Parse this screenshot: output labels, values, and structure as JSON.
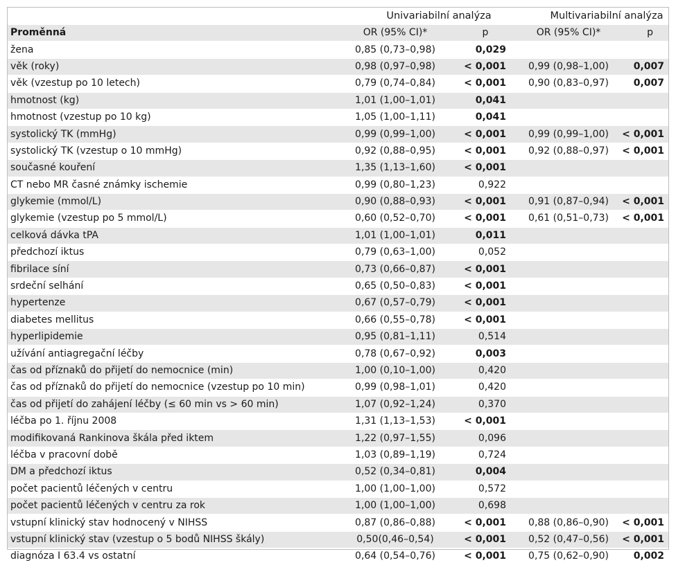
{
  "headers": {
    "group_uni": "Univariabilní analýza",
    "group_multi": "Multivariabilní analýza",
    "col_var": "Proměnná",
    "col_or1": "OR (95% CI)*",
    "col_p1": "p",
    "col_or2": "OR (95% CI)*",
    "col_p2": "p"
  },
  "rows": [
    {
      "var": "žena",
      "or1": "0,85 (0,73–0,98)",
      "p1": "0,029",
      "p1_bold": true,
      "or2": "",
      "p2": ""
    },
    {
      "var": "věk (roky)",
      "or1": "0,98 (0,97–0,98)",
      "p1": "< 0,001",
      "p1_bold": true,
      "or2": "0,99 (0,98–1,00)",
      "p2": "0,007"
    },
    {
      "var": "věk (vzestup po 10 letech)",
      "or1": "0,79 (0,74–0,84)",
      "p1": "< 0,001",
      "p1_bold": true,
      "or2": "0,90 (0,83–0,97)",
      "p2": "0,007"
    },
    {
      "var": "hmotnost (kg)",
      "or1": "1,01 (1,00–1,01)",
      "p1": "0,041",
      "p1_bold": true,
      "or2": "",
      "p2": ""
    },
    {
      "var": "hmotnost (vzestup po 10 kg)",
      "or1": "1,05 (1,00–1,11)",
      "p1": "0,041",
      "p1_bold": true,
      "or2": "",
      "p2": ""
    },
    {
      "var": "systolický TK (mmHg)",
      "or1": "0,99 (0,99–1,00)",
      "p1": "< 0,001",
      "p1_bold": true,
      "or2": "0,99 (0,99–1,00)",
      "p2": "< 0,001"
    },
    {
      "var": "systolický TK (vzestup o 10 mmHg)",
      "or1": "0,92 (0,88–0,95)",
      "p1": "< 0,001",
      "p1_bold": true,
      "or2": "0,92 (0,88–0,97)",
      "p2": "< 0,001"
    },
    {
      "var": "současné kouření",
      "or1": "1,35 (1,13–1,60)",
      "p1": "< 0,001",
      "p1_bold": true,
      "or2": "",
      "p2": ""
    },
    {
      "var": "CT nebo MR časné známky ischemie",
      "or1": "0,99 (0,80–1,23)",
      "p1": "0,922",
      "p1_bold": false,
      "or2": "",
      "p2": ""
    },
    {
      "var": "glykemie (mmol/L)",
      "or1": "0,90 (0,88–0,93)",
      "p1": "< 0,001",
      "p1_bold": true,
      "or2": "0,91 (0,87–0,94)",
      "p2": "< 0,001"
    },
    {
      "var": "glykemie (vzestup po 5 mmol/L)",
      "or1": "0,60 (0,52–0,70)",
      "p1": "< 0,001",
      "p1_bold": true,
      "or2": "0,61 (0,51–0,73)",
      "p2": "< 0,001"
    },
    {
      "var": "celková dávka tPA",
      "or1": "1,01 (1,00–1,01)",
      "p1": "0,011",
      "p1_bold": true,
      "or2": "",
      "p2": ""
    },
    {
      "var": "předchozí iktus",
      "or1": "0,79 (0,63–1,00)",
      "p1": "0,052",
      "p1_bold": false,
      "or2": "",
      "p2": ""
    },
    {
      "var": "fibrilace síní",
      "or1": "0,73 (0,66–0,87)",
      "p1": "< 0,001",
      "p1_bold": true,
      "or2": "",
      "p2": ""
    },
    {
      "var": "srdeční selhání",
      "or1": "0,65 (0,50–0,83)",
      "p1": "< 0,001",
      "p1_bold": true,
      "or2": "",
      "p2": ""
    },
    {
      "var": "hypertenze",
      "or1": "0,67 (0,57–0,79)",
      "p1": "< 0,001",
      "p1_bold": true,
      "or2": "",
      "p2": ""
    },
    {
      "var": "diabetes mellitus",
      "or1": "0,66 (0,55–0,78)",
      "p1": "< 0,001",
      "p1_bold": true,
      "or2": "",
      "p2": ""
    },
    {
      "var": "hyperlipidemie",
      "or1": "0,95 (0,81–1,11)",
      "p1": "0,514",
      "p1_bold": false,
      "or2": "",
      "p2": ""
    },
    {
      "var": "užívání antiagregační léčby",
      "or1": "0,78 (0,67–0,92)",
      "p1": "0,003",
      "p1_bold": true,
      "or2": "",
      "p2": ""
    },
    {
      "var": "čas od příznaků do přijetí do nemocnice (min)",
      "or1": "1,00 (0,10–1,00)",
      "p1": "0,420",
      "p1_bold": false,
      "or2": "",
      "p2": ""
    },
    {
      "var": "čas od příznaků do přijetí do nemocnice (vzestup po 10 min)",
      "or1": "0,99 (0,98–1,01)",
      "p1": "0,420",
      "p1_bold": false,
      "or2": "",
      "p2": ""
    },
    {
      "var": "čas od přijetí do zahájení léčby (≤ 60 min vs > 60 min)",
      "or1": "1,07 (0,92–1,24)",
      "p1": "0,370",
      "p1_bold": false,
      "or2": "",
      "p2": ""
    },
    {
      "var": "léčba po 1. říjnu 2008",
      "or1": "1,31 (1,13–1,53)",
      "p1": "< 0,001",
      "p1_bold": true,
      "or2": "",
      "p2": ""
    },
    {
      "var": "modifikovaná Rankinova škála před iktem",
      "or1": "1,22 (0,97–1,55)",
      "p1": "0,096",
      "p1_bold": false,
      "or2": "",
      "p2": ""
    },
    {
      "var": "léčba v pracovní době",
      "or1": "1,03 (0,89–1,19)",
      "p1": "0,724",
      "p1_bold": false,
      "or2": "",
      "p2": ""
    },
    {
      "var": "DM a předchozí iktus",
      "or1": "0,52 (0,34–0,81)",
      "p1": "0,004",
      "p1_bold": true,
      "or2": "",
      "p2": ""
    },
    {
      "var": "počet pacientů léčených v centru",
      "or1": "1,00 (1,00–1,00)",
      "p1": "0,572",
      "p1_bold": false,
      "or2": "",
      "p2": ""
    },
    {
      "var": "počet pacientů léčených v centru za rok",
      "or1": "1,00 (1,00–1,00)",
      "p1": "0,698",
      "p1_bold": false,
      "or2": "",
      "p2": ""
    },
    {
      "var": "vstupní klinický stav hodnocený v NIHSS",
      "or1": "0,87 (0,86–0,88)",
      "p1": "< 0,001",
      "p1_bold": true,
      "or2": "0,88 (0,86–0,90)",
      "p2": "< 0,001"
    },
    {
      "var": "vstupní klinický stav (vzestup o 5 bodů NIHSS škály)",
      "or1": "0,50(0,46–0,54)",
      "p1": "< 0,001",
      "p1_bold": true,
      "or2": "0,52 (0,47–0,56)",
      "p2": "< 0,001"
    },
    {
      "var": "diagnóza I 63.4 vs ostatní",
      "or1": "0,64 (0,54–0,76)",
      "p1": "< 0,001",
      "p1_bold": true,
      "or2": "0,75 (0,62–0,90)",
      "p2": "0,002"
    }
  ]
}
